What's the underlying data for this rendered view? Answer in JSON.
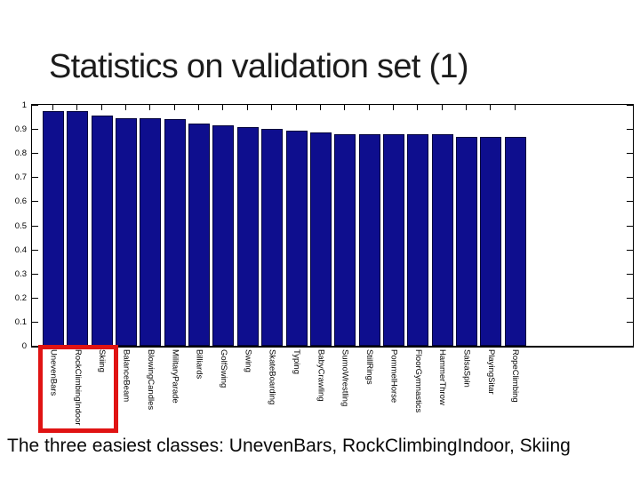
{
  "slide": {
    "title": "Statistics on validation set (1)",
    "caption": "The three easiest classes: UnevenBars, RockClimbingIndoor, Skiing"
  },
  "highlight_box": {
    "purpose": "red box highlighting the three easiest class labels",
    "classes_highlighted": [
      "UnevenBars",
      "RockClimbingIndoor",
      "Skiing"
    ],
    "color": "#e01313"
  },
  "chart_data": {
    "type": "bar",
    "title": "",
    "xlabel": "",
    "ylabel": "",
    "categories": [
      "UnevenBars",
      "RockClimbingIndoor",
      "Skiing",
      "BalanceBeam",
      "BlowingCandles",
      "MilitaryParade",
      "Billiards",
      "GolfSwing",
      "Swing",
      "SkateBoarding",
      "Typing",
      "BabyCrawling",
      "SumoWrestling",
      "StillRings",
      "PommelHorse",
      "FloorGymnastics",
      "HammerThrow",
      "SalsaSpin",
      "PlayingSitar",
      "RopeClimbing"
    ],
    "values": [
      0.974,
      0.974,
      0.956,
      0.944,
      0.944,
      0.941,
      0.923,
      0.916,
      0.906,
      0.902,
      0.892,
      0.886,
      0.88,
      0.879,
      0.879,
      0.879,
      0.878,
      0.869,
      0.868,
      0.868
    ],
    "ylim": [
      0,
      1
    ],
    "ytick_labels": [
      "1",
      "0.9",
      "0.8",
      "0.7",
      "0.6",
      "0.5",
      "0.4",
      "0.3",
      "0.2",
      "0.1",
      "0"
    ],
    "bar_color": "#0e0e8e",
    "grid": false,
    "box": true,
    "legend": null,
    "x_label_rotation": "vertical"
  }
}
